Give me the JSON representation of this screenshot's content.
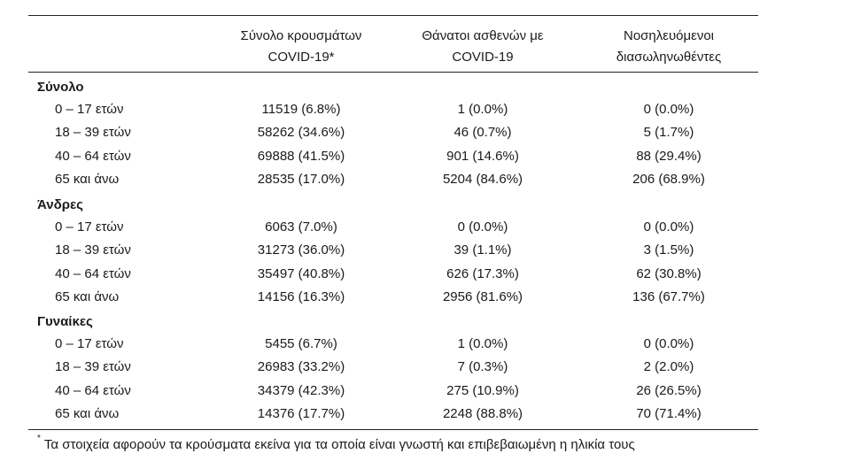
{
  "header": {
    "col1": [
      "Σύνολο κρουσμάτων",
      "COVID-19*"
    ],
    "col2": [
      "Θάνατοι ασθενών με",
      "COVID-19"
    ],
    "col3": [
      "Νοσηλευόμενοι",
      "διασωληνωθέντες"
    ]
  },
  "groups": [
    {
      "title": "Σύνολο",
      "rows": [
        {
          "label": "0 – 17 ετών",
          "cases": "11519 (6.8%)",
          "deaths": "1 (0.0%)",
          "intubated": "0 (0.0%)"
        },
        {
          "label": "18 – 39 ετών",
          "cases": "58262 (34.6%)",
          "deaths": "46 (0.7%)",
          "intubated": "5 (1.7%)"
        },
        {
          "label": "40 – 64 ετών",
          "cases": "69888 (41.5%)",
          "deaths": "901 (14.6%)",
          "intubated": "88 (29.4%)"
        },
        {
          "label": "65 και άνω",
          "cases": "28535 (17.0%)",
          "deaths": "5204 (84.6%)",
          "intubated": "206 (68.9%)"
        }
      ]
    },
    {
      "title": "Άνδρες",
      "rows": [
        {
          "label": "0 – 17 ετών",
          "cases": "6063 (7.0%)",
          "deaths": "0 (0.0%)",
          "intubated": "0 (0.0%)"
        },
        {
          "label": "18 – 39 ετών",
          "cases": "31273 (36.0%)",
          "deaths": "39 (1.1%)",
          "intubated": "3 (1.5%)"
        },
        {
          "label": "40 – 64 ετών",
          "cases": "35497 (40.8%)",
          "deaths": "626 (17.3%)",
          "intubated": "62 (30.8%)"
        },
        {
          "label": "65 και άνω",
          "cases": "14156 (16.3%)",
          "deaths": "2956 (81.6%)",
          "intubated": "136 (67.7%)"
        }
      ]
    },
    {
      "title": "Γυναίκες",
      "rows": [
        {
          "label": "0 – 17 ετών",
          "cases": "5455 (6.7%)",
          "deaths": "1 (0.0%)",
          "intubated": "0 (0.0%)"
        },
        {
          "label": "18 – 39 ετών",
          "cases": "26983 (33.2%)",
          "deaths": "7 (0.3%)",
          "intubated": "2 (2.0%)"
        },
        {
          "label": "40 – 64 ετών",
          "cases": "34379 (42.3%)",
          "deaths": "275 (10.9%)",
          "intubated": "26 (26.5%)"
        },
        {
          "label": "65 και άνω",
          "cases": "14376 (17.7%)",
          "deaths": "2248 (88.8%)",
          "intubated": "70 (71.4%)"
        }
      ]
    }
  ],
  "footnote": {
    "marker": "*",
    "text": "Τα στοιχεία αφορούν τα κρούσματα εκείνα για τα οποία είναι γνωστή και επιβεβαιωμένη η ηλικία τους"
  }
}
